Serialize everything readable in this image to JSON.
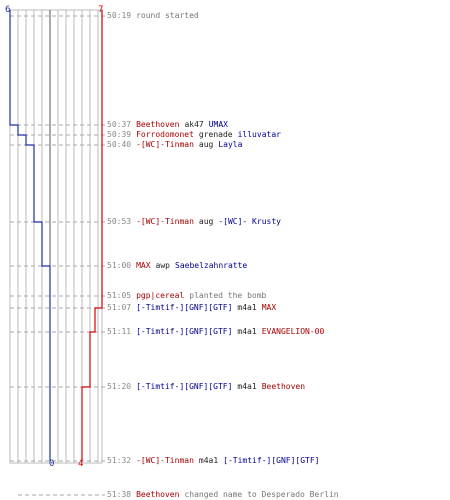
{
  "score": {
    "blue_start": "6",
    "red_start": "7",
    "blue_end": "0",
    "red_end": "4"
  },
  "colors": {
    "blue": "#1f2fa6",
    "red": "#d40000",
    "grid": "#bbbbbb",
    "dash": "#aaaaaa"
  },
  "events": [
    {
      "time": "50:19",
      "parts": [
        {
          "text": "round started",
          "style": "gray"
        }
      ]
    },
    {
      "time": "50:37",
      "parts": [
        {
          "text": "Beethoven",
          "style": "red"
        },
        {
          "text": "ak47",
          "style": "dark"
        },
        {
          "text": "UMAX",
          "style": "blue"
        }
      ]
    },
    {
      "time": "50:39",
      "parts": [
        {
          "text": "Forrodomonet",
          "style": "red"
        },
        {
          "text": "grenade",
          "style": "dark"
        },
        {
          "text": "illuvatar",
          "style": "blue"
        }
      ]
    },
    {
      "time": "50:40",
      "parts": [
        {
          "text": "-[WC]-Tinman",
          "style": "red"
        },
        {
          "text": "aug",
          "style": "dark"
        },
        {
          "text": "Layla",
          "style": "blue"
        }
      ]
    },
    {
      "time": "50:53",
      "parts": [
        {
          "text": "-[WC]-Tinman",
          "style": "red"
        },
        {
          "text": "aug",
          "style": "dark"
        },
        {
          "text": "-[WC]- Krusty",
          "style": "blue"
        }
      ]
    },
    {
      "time": "51:00",
      "parts": [
        {
          "text": "MAX",
          "style": "red"
        },
        {
          "text": "awp",
          "style": "dark"
        },
        {
          "text": "Saebelzahnratte",
          "style": "blue"
        }
      ]
    },
    {
      "time": "51:05",
      "parts": [
        {
          "text": "pgp|cereal",
          "style": "red"
        },
        {
          "text": "planted the bomb",
          "style": "gray"
        }
      ]
    },
    {
      "time": "51:07",
      "parts": [
        {
          "text": "[-Timtif-][GNF][GTF]",
          "style": "blue"
        },
        {
          "text": "m4a1",
          "style": "dark"
        },
        {
          "text": "MAX",
          "style": "red"
        }
      ]
    },
    {
      "time": "51:11",
      "parts": [
        {
          "text": "[-Timtif-][GNF][GTF]",
          "style": "blue"
        },
        {
          "text": "m4a1",
          "style": "dark"
        },
        {
          "text": "EVANGELION-00",
          "style": "red"
        }
      ]
    },
    {
      "time": "51:20",
      "parts": [
        {
          "text": "[-Timtif-][GNF][GTF]",
          "style": "blue"
        },
        {
          "text": "m4a1",
          "style": "dark"
        },
        {
          "text": "Beethoven",
          "style": "red"
        }
      ]
    },
    {
      "time": "51:32",
      "parts": [
        {
          "text": "-[WC]-Tinman",
          "style": "red"
        },
        {
          "text": "m4a1",
          "style": "dark"
        },
        {
          "text": "[-Timtif-][GNF][GTF]",
          "style": "blue"
        }
      ]
    },
    {
      "time": "51:38",
      "parts": [
        {
          "text": "Beethoven",
          "style": "red"
        },
        {
          "text": "changed name to Desperado Berlin",
          "style": "gray"
        }
      ]
    }
  ]
}
